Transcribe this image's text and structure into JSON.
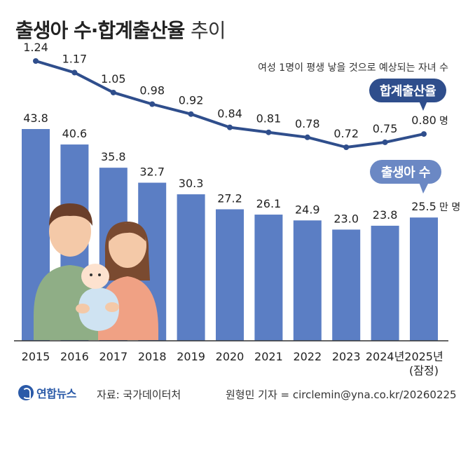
{
  "header": {
    "title_bold": "출생아 수·합계출산율",
    "title_light": "추이"
  },
  "subtitle": "여성 1명이 평생 낳을 것으로 예상되는 자녀 수",
  "legend": {
    "tfr_label": "합계출산율",
    "births_label": "출생아 수"
  },
  "colors": {
    "bar": "#5b7ec4",
    "line": "#2f4e8c",
    "tfr_pill": "#2f4e8c",
    "births_pill": "#6b88c4"
  },
  "chart_data": {
    "type": "bar",
    "categories": [
      "2015",
      "2016",
      "2017",
      "2018",
      "2019",
      "2020",
      "2021",
      "2022",
      "2023",
      "2024년",
      "2025년"
    ],
    "category_notes": [
      "",
      "",
      "",
      "",
      "",
      "",
      "",
      "",
      "",
      "",
      "(잠정)"
    ],
    "series": [
      {
        "name": "출생아 수",
        "type": "bar",
        "unit": "만 명",
        "values": [
          43.8,
          40.6,
          35.8,
          32.7,
          30.3,
          27.2,
          26.1,
          24.9,
          23.0,
          23.8,
          25.5
        ],
        "labels": [
          "43.8",
          "40.6",
          "35.8",
          "32.7",
          "30.3",
          "27.2",
          "26.1",
          "24.9",
          "23.0",
          "23.8",
          "25.5"
        ]
      },
      {
        "name": "합계출산율",
        "type": "line",
        "unit": "명",
        "values": [
          1.24,
          1.17,
          1.05,
          0.98,
          0.92,
          0.84,
          0.81,
          0.78,
          0.72,
          0.75,
          0.8
        ],
        "labels": [
          "1.24",
          "1.17",
          "1.05",
          "0.98",
          "0.92",
          "0.84",
          "0.81",
          "0.78",
          "0.72",
          "0.75",
          "0.80"
        ]
      }
    ],
    "bar_ylim": [
      0,
      55
    ],
    "line_ylim": [
      0.4,
      1.3
    ],
    "grid": false
  },
  "footer": {
    "logo": "연합뉴스",
    "source": "자료: 국가데이터처",
    "credit": "원형민 기자 = circlemin@yna.co.kr/20260225"
  }
}
